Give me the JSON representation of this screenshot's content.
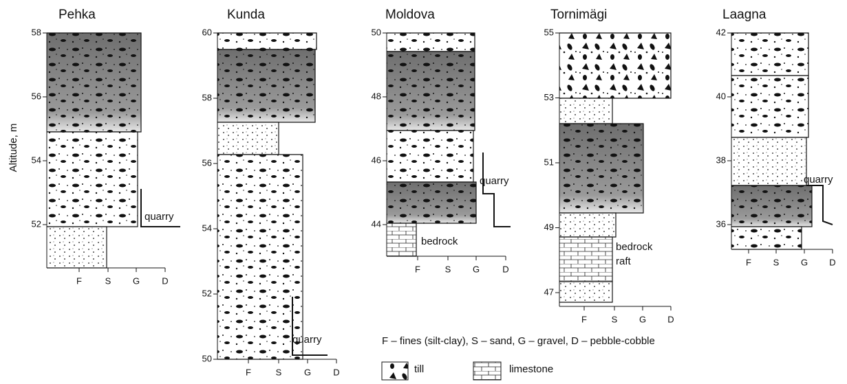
{
  "y_axis_label": "Altitude, m",
  "columns": [
    {
      "title": "Pehka",
      "ticks": [
        58,
        56,
        54,
        52
      ],
      "x_labels": [
        "F",
        "S",
        "G",
        "D"
      ],
      "annotations": [
        "quarry"
      ]
    },
    {
      "title": "Kunda",
      "ticks": [
        60,
        58,
        56,
        54,
        52,
        50
      ],
      "x_labels": [
        "F",
        "S",
        "G",
        "D"
      ],
      "annotations": [
        "quarry"
      ]
    },
    {
      "title": "Moldova",
      "ticks": [
        50,
        48,
        46,
        44
      ],
      "x_labels": [
        "F",
        "S",
        "G",
        "D"
      ],
      "annotations": [
        "quarry",
        "bedrock"
      ]
    },
    {
      "title": "Tornimägi",
      "ticks": [
        55,
        53,
        51,
        49,
        47
      ],
      "x_labels": [
        "F",
        "S",
        "G",
        "D"
      ],
      "annotations": [
        "bedrock",
        "raft"
      ]
    },
    {
      "title": "Laagna",
      "ticks": [
        42,
        40,
        38,
        36
      ],
      "x_labels": [
        "F",
        "S",
        "G",
        "D"
      ],
      "annotations": [
        "quarry"
      ]
    }
  ],
  "legend": {
    "key": "F – fines (silt-clay), S – sand, G – gravel, D – pebble-cobble",
    "items": [
      "till",
      "limestone"
    ]
  }
}
